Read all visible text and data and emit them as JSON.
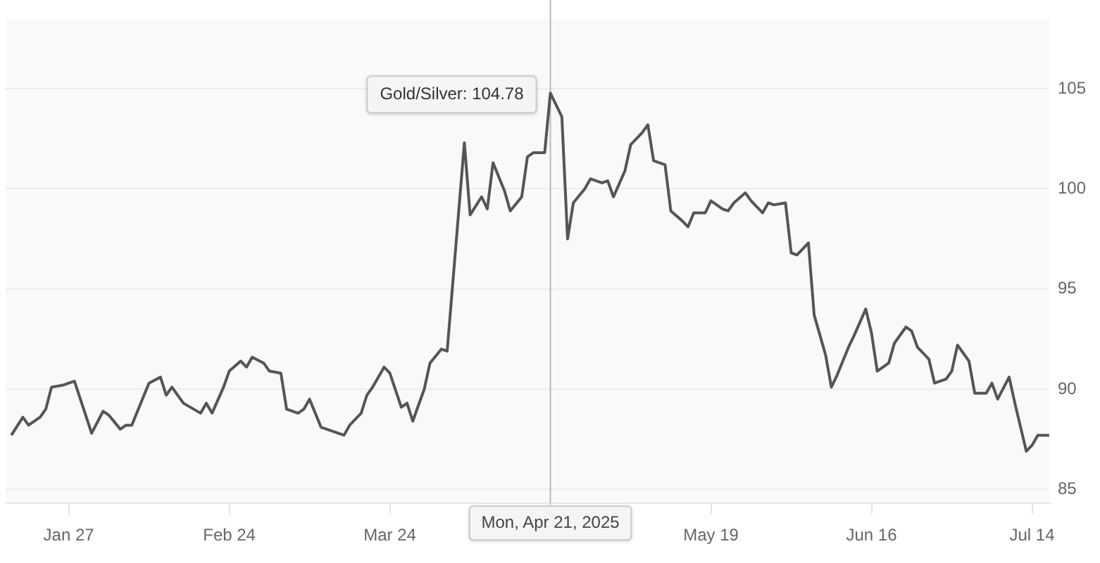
{
  "chart_data": {
    "type": "line",
    "x": [
      "2025-01-17",
      "2025-01-19",
      "2025-01-20",
      "2025-01-22",
      "2025-01-23",
      "2025-01-24",
      "2025-01-26",
      "2025-01-27",
      "2025-01-28",
      "2025-01-31",
      "2025-02-02",
      "2025-02-03",
      "2025-02-05",
      "2025-02-06",
      "2025-02-07",
      "2025-02-09",
      "2025-02-10",
      "2025-02-12",
      "2025-02-13",
      "2025-02-14",
      "2025-02-16",
      "2025-02-19",
      "2025-02-20",
      "2025-02-21",
      "2025-02-23",
      "2025-02-24",
      "2025-02-26",
      "2025-02-27",
      "2025-02-28",
      "2025-03-02",
      "2025-03-03",
      "2025-03-05",
      "2025-03-06",
      "2025-03-08",
      "2025-03-09",
      "2025-03-10",
      "2025-03-12",
      "2025-03-13",
      "2025-03-16",
      "2025-03-17",
      "2025-03-19",
      "2025-03-20",
      "2025-03-21",
      "2025-03-23",
      "2025-03-24",
      "2025-03-26",
      "2025-03-27",
      "2025-03-28",
      "2025-03-30",
      "2025-03-31",
      "2025-04-02",
      "2025-04-03",
      "2025-04-06",
      "2025-04-07",
      "2025-04-09",
      "2025-04-10",
      "2025-04-11",
      "2025-04-13",
      "2025-04-14",
      "2025-04-16",
      "2025-04-17",
      "2025-04-18",
      "2025-04-20",
      "2025-04-21",
      "2025-04-23",
      "2025-04-24",
      "2025-04-25",
      "2025-04-27",
      "2025-04-28",
      "2025-04-30",
      "2025-05-01",
      "2025-05-02",
      "2025-05-04",
      "2025-05-05",
      "2025-05-07",
      "2025-05-08",
      "2025-05-09",
      "2025-05-11",
      "2025-05-12",
      "2025-05-14",
      "2025-05-15",
      "2025-05-16",
      "2025-05-18",
      "2025-05-19",
      "2025-05-21",
      "2025-05-22",
      "2025-05-23",
      "2025-05-25",
      "2025-05-26",
      "2025-05-28",
      "2025-05-29",
      "2025-05-30",
      "2025-06-01",
      "2025-06-02",
      "2025-06-03",
      "2025-06-05",
      "2025-06-06",
      "2025-06-08",
      "2025-06-09",
      "2025-06-10",
      "2025-06-12",
      "2025-06-13",
      "2025-06-15",
      "2025-06-16",
      "2025-06-17",
      "2025-06-19",
      "2025-06-20",
      "2025-06-22",
      "2025-06-23",
      "2025-06-24",
      "2025-06-26",
      "2025-06-27",
      "2025-06-29",
      "2025-06-30",
      "2025-07-01",
      "2025-07-03",
      "2025-07-04",
      "2025-07-06",
      "2025-07-07",
      "2025-07-08",
      "2025-07-10",
      "2025-07-11",
      "2025-07-13",
      "2025-07-14",
      "2025-07-15",
      "2025-07-17"
    ],
    "series": [
      {
        "color": "#555555",
        "values": [
          87.7,
          88.6,
          88.2,
          88.6,
          89.0,
          90.1,
          90.2,
          90.3,
          90.4,
          87.8,
          88.9,
          88.7,
          88.0,
          88.2,
          88.2,
          89.6,
          90.3,
          90.6,
          89.7,
          90.1,
          89.3,
          88.8,
          89.3,
          88.8,
          90.1,
          90.9,
          91.4,
          91.1,
          91.6,
          91.3,
          90.9,
          90.8,
          89.0,
          88.8,
          89.0,
          89.5,
          88.1,
          88.0,
          87.7,
          88.2,
          88.8,
          89.7,
          90.1,
          91.1,
          90.8,
          89.1,
          89.3,
          88.4,
          90.0,
          91.3,
          92.0,
          91.9,
          102.3,
          98.7,
          99.6,
          99.0,
          101.3,
          99.9,
          98.9,
          99.6,
          101.6,
          101.8,
          101.8,
          104.78,
          103.6,
          97.5,
          99.3,
          100.0,
          100.5,
          100.3,
          100.4,
          99.6,
          100.9,
          102.2,
          102.8,
          103.2,
          101.4,
          101.2,
          98.9,
          98.4,
          98.1,
          98.8,
          98.8,
          99.4,
          99.0,
          98.9,
          99.3,
          99.8,
          99.4,
          98.8,
          99.3,
          99.2,
          99.3,
          96.8,
          96.7,
          97.3,
          93.7,
          91.7,
          90.1,
          90.7,
          92.1,
          92.7,
          94.0,
          92.8,
          90.9,
          91.3,
          92.3,
          93.1,
          92.9,
          92.1,
          91.5,
          90.3,
          90.5,
          90.9,
          92.2,
          91.4,
          89.8,
          89.8,
          90.3,
          89.5,
          90.6,
          89.3,
          86.9,
          87.2,
          87.7,
          87.7
        ]
      }
    ],
    "xlim": [
      "2025-01-16",
      "2025-07-17"
    ],
    "xticks": [
      {
        "value": "2025-01-27",
        "label": "Jan 27"
      },
      {
        "value": "2025-02-24",
        "label": "Feb 24"
      },
      {
        "value": "2025-03-24",
        "label": "Mar 24"
      },
      {
        "value": "2025-04-21",
        "label": null
      },
      {
        "value": "2025-05-19",
        "label": "May 19"
      },
      {
        "value": "2025-06-16",
        "label": "Jun 16"
      },
      {
        "value": "2025-07-14",
        "label": "Jul 14"
      }
    ],
    "ylim": [
      84.3,
      108.5
    ],
    "yticks": [
      85,
      90,
      95,
      100,
      105
    ],
    "grid": "y",
    "marker": "none",
    "line_style": "solid",
    "ref_lines": [
      {
        "axis": "x",
        "value": "2025-04-21",
        "label": "Mon, Apr 21, 2025",
        "color": "#bbbbbb"
      }
    ],
    "annotations": [
      {
        "text": "Gold/Silver: 104.78",
        "x": "2025-04-21",
        "y": 104.78
      }
    ]
  }
}
